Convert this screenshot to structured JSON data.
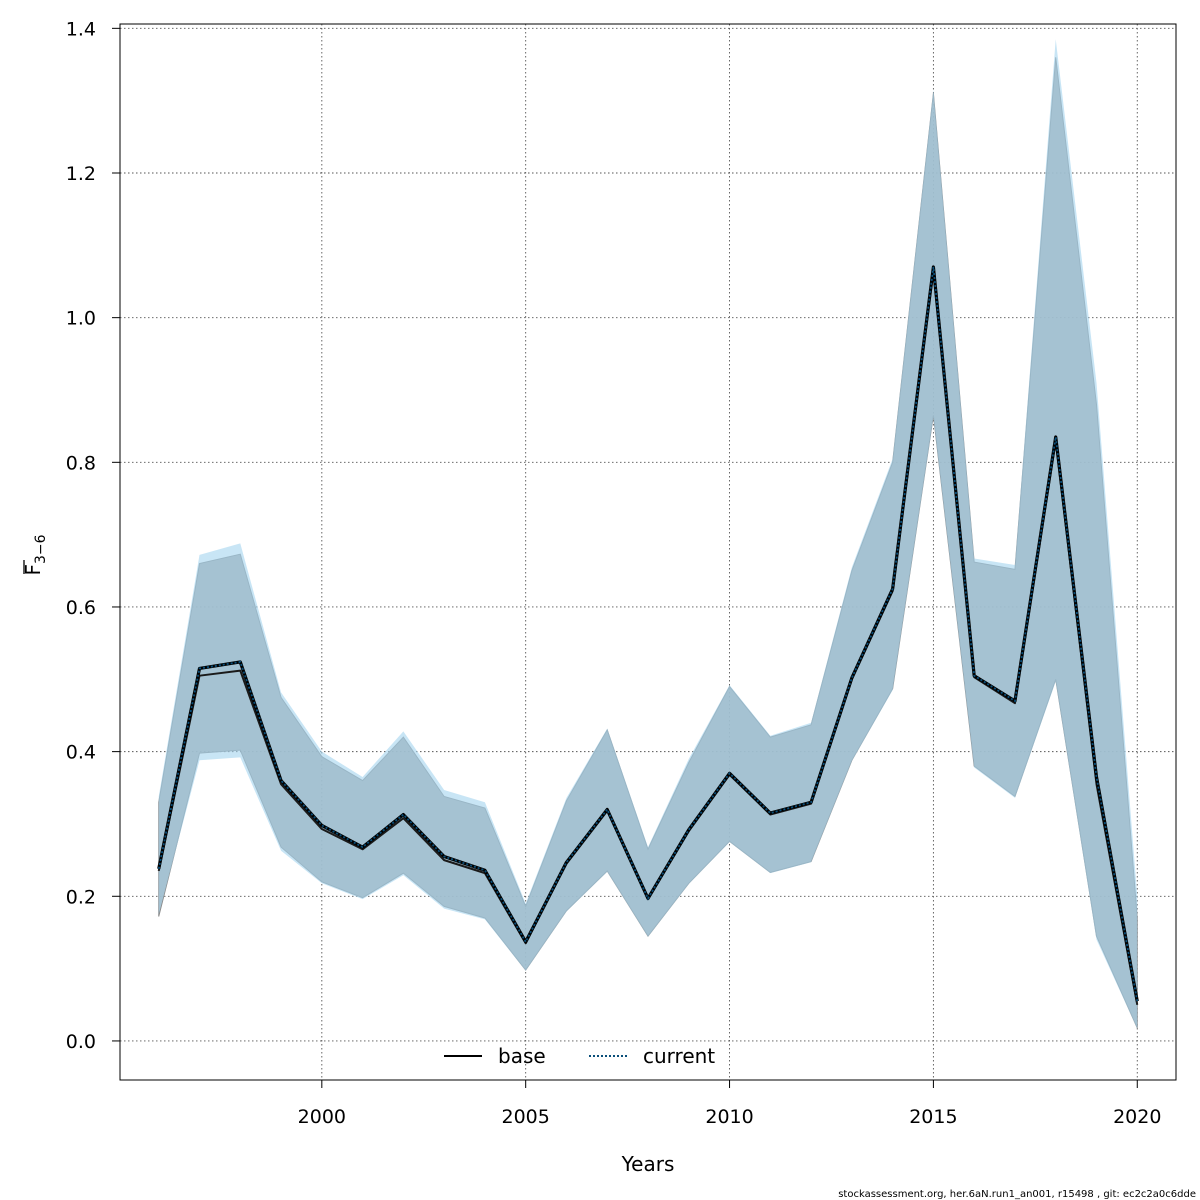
{
  "chart_data": {
    "type": "line",
    "xlabel": "Years",
    "ylabel": {
      "main": "F",
      "sub": "3−6"
    },
    "xlim": [
      1995.05,
      2020.95
    ],
    "ylim": [
      -0.054,
      1.406
    ],
    "x_ticks": [
      2000,
      2005,
      2010,
      2015,
      2020
    ],
    "y_ticks": [
      0.0,
      0.2,
      0.4,
      0.6,
      0.8,
      1.0,
      1.2,
      1.4
    ],
    "x_tick_labels": [
      "2000",
      "2005",
      "2010",
      "2015",
      "2020"
    ],
    "y_tick_labels": [
      "0.0",
      "0.2",
      "0.4",
      "0.6",
      "0.8",
      "1.0",
      "1.2",
      "1.4"
    ],
    "grid": true,
    "legend_position": "bottom",
    "x": [
      1996,
      1997,
      1998,
      1999,
      2000,
      2001,
      2002,
      2003,
      2004,
      2005,
      2006,
      2007,
      2008,
      2009,
      2010,
      2011,
      2012,
      2013,
      2014,
      2015,
      2016,
      2017,
      2018,
      2019,
      2020
    ],
    "series": [
      {
        "name": "base",
        "color": "#000000",
        "dash": "solid",
        "values": [
          0.235,
          0.505,
          0.512,
          0.355,
          0.293,
          0.265,
          0.308,
          0.25,
          0.232,
          0.135,
          0.245,
          0.318,
          0.196,
          0.29,
          0.368,
          0.313,
          0.328,
          0.5,
          0.622,
          1.065,
          0.503,
          0.467,
          0.83,
          0.355,
          0.05
        ],
        "lower": [
          0.172,
          0.398,
          0.402,
          0.268,
          0.22,
          0.198,
          0.232,
          0.186,
          0.17,
          0.098,
          0.18,
          0.235,
          0.145,
          0.218,
          0.276,
          0.233,
          0.248,
          0.388,
          0.487,
          0.865,
          0.38,
          0.338,
          0.5,
          0.145,
          0.018
        ],
        "upper": [
          0.33,
          0.66,
          0.673,
          0.475,
          0.393,
          0.36,
          0.42,
          0.338,
          0.322,
          0.186,
          0.332,
          0.43,
          0.265,
          0.385,
          0.49,
          0.42,
          0.437,
          0.65,
          0.8,
          1.31,
          0.662,
          0.652,
          1.36,
          0.88,
          0.17
        ],
        "band_color": "#9a9a9a"
      },
      {
        "name": "current",
        "color": "#0a4f7a",
        "dash": "dotted",
        "values": [
          0.238,
          0.515,
          0.524,
          0.36,
          0.298,
          0.268,
          0.313,
          0.255,
          0.236,
          0.137,
          0.247,
          0.32,
          0.197,
          0.292,
          0.37,
          0.315,
          0.33,
          0.502,
          0.625,
          1.07,
          0.505,
          0.47,
          0.835,
          0.365,
          0.055
        ],
        "lower": [
          0.175,
          0.388,
          0.392,
          0.263,
          0.218,
          0.196,
          0.229,
          0.183,
          0.168,
          0.097,
          0.179,
          0.234,
          0.144,
          0.217,
          0.275,
          0.232,
          0.247,
          0.387,
          0.485,
          0.862,
          0.378,
          0.336,
          0.497,
          0.14,
          0.017
        ],
        "upper": [
          0.338,
          0.672,
          0.688,
          0.482,
          0.4,
          0.365,
          0.428,
          0.347,
          0.33,
          0.19,
          0.336,
          0.432,
          0.268,
          0.39,
          0.492,
          0.422,
          0.44,
          0.655,
          0.805,
          1.315,
          0.667,
          0.658,
          1.385,
          0.91,
          0.2
        ],
        "band_color": "#a3d3ef"
      }
    ]
  },
  "footer": "stockassessment.org, her.6aN.run1_an001, r15498 , git: ec2c2a0c6dde"
}
